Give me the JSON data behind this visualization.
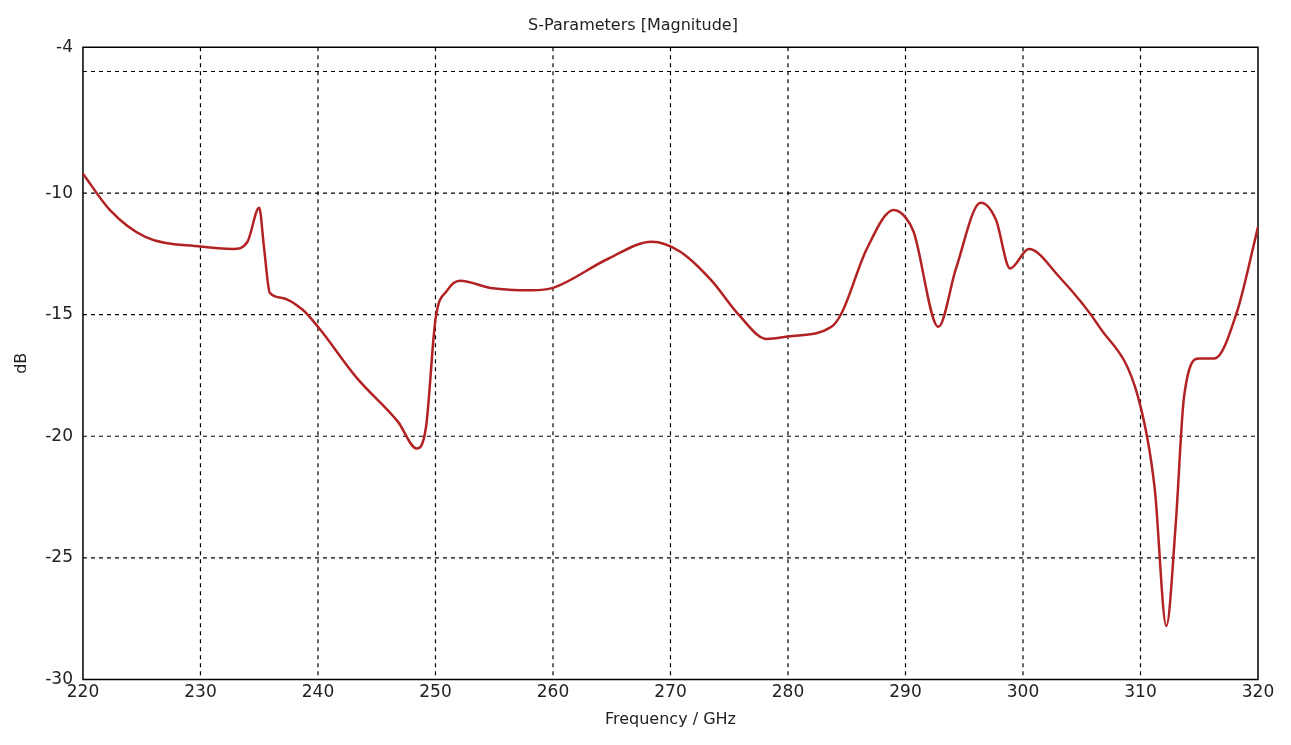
{
  "chart_data": {
    "type": "line",
    "title": "S-Parameters [Magnitude]",
    "xlabel": "Frequency / GHz",
    "ylabel": "dB",
    "x": [
      220,
      222.3,
      225.3,
      230,
      232.8,
      234,
      235,
      235.4,
      235.9,
      236.9,
      238.7,
      240,
      243.3,
      246.8,
      248.4,
      249.2,
      250,
      251,
      252.1,
      254.7,
      258.2,
      260,
      264.7,
      268.4,
      270.8,
      273.5,
      275.8,
      278.2,
      280,
      283.7,
      284.6,
      286.7,
      289,
      290,
      290.7,
      292.8,
      294.3,
      296.4,
      297.7,
      298.9,
      300.5,
      303,
      306.5,
      309.8,
      311.2,
      312.2,
      313,
      313.7,
      315,
      316.3,
      318.2,
      320
    ],
    "series": [
      {
        "color": "#b22222",
        "values": [
          -9.2,
          -10.7,
          -11.8,
          -12.2,
          -12.3,
          -12.0,
          -10.6,
          -12.2,
          -14.1,
          -14.3,
          -14.8,
          -15.5,
          -17.6,
          -19.4,
          -20.5,
          -19.6,
          -15.2,
          -14.0,
          -13.6,
          -13.9,
          -14.0,
          -13.9,
          -12.7,
          -12.0,
          -12.4,
          -13.6,
          -15.0,
          -16.0,
          -15.9,
          -15.5,
          -14.9,
          -12.3,
          -10.7,
          -11.0,
          -11.6,
          -15.5,
          -13.1,
          -10.4,
          -11.1,
          -13.1,
          -12.3,
          -13.4,
          -15.5,
          -18.4,
          -22.1,
          -27.8,
          -23.6,
          -18.4,
          -16.8,
          -16.8,
          -14.9,
          -11.4
        ]
      }
    ],
    "xlim": [
      220,
      320
    ],
    "xticks": [
      220,
      230,
      240,
      250,
      260,
      270,
      280,
      290,
      300,
      310,
      320
    ],
    "ylim": [
      -30,
      -4
    ],
    "yticks": [
      -30,
      -25,
      -20,
      -15,
      -10,
      {
        "value": -5,
        "label": null
      },
      -4
    ],
    "grid": true,
    "legend": false,
    "marker": "none",
    "line_style": "solid"
  }
}
